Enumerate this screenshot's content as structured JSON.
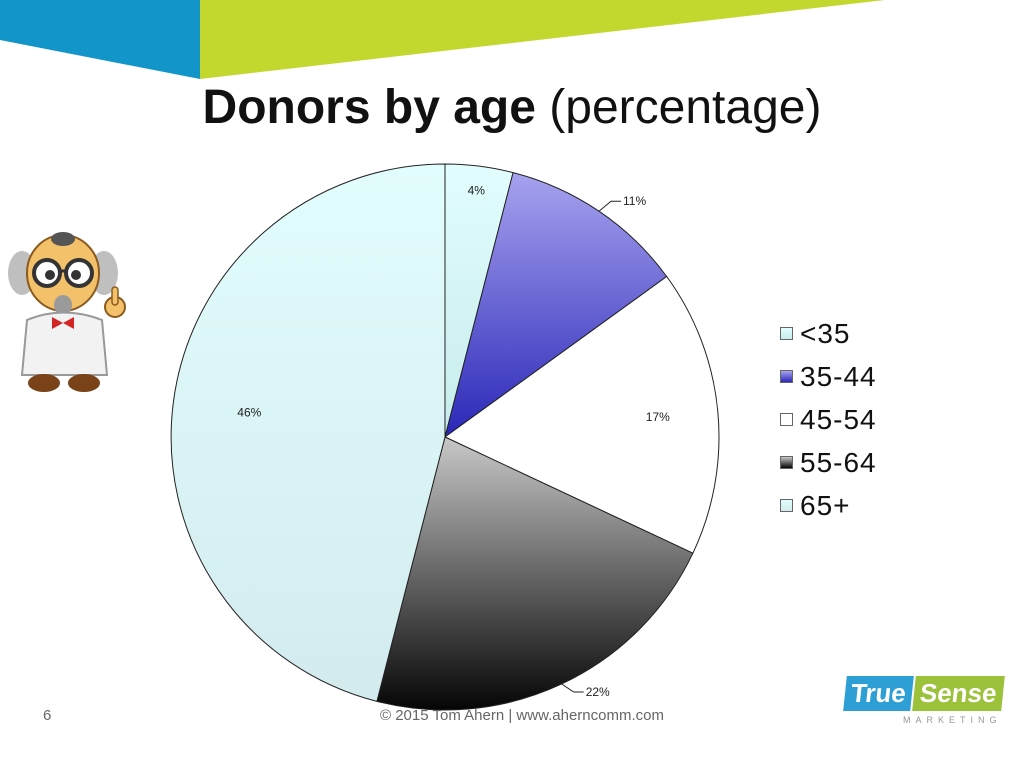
{
  "slide": {
    "title_bold": "Donors by age",
    "title_rest": "(percentage)",
    "page_number": "6",
    "footer": "© 2015 Tom Ahern | www.aherncomm.com",
    "logo": {
      "word1": "True",
      "word2": "Sense",
      "subtitle": "MARKETING",
      "word1_color": "#2e9fd4",
      "word2_color": "#9cc13a"
    },
    "banner_colors": {
      "blue": "#1296c9",
      "green": "#c3d82e"
    },
    "mascot": "professor-cartoon"
  },
  "chart_data": {
    "type": "pie",
    "title": "Donors by age (percentage)",
    "start_angle_deg": 0,
    "direction": "clockwise",
    "legend_position": "right",
    "slices": [
      {
        "label": "<35",
        "value": 4,
        "display": "4%",
        "color_top": "#e2fdfd",
        "color_bottom": "#c7ecec",
        "label_side": "inside"
      },
      {
        "label": "35-44",
        "value": 11,
        "display": "11%",
        "color_top": "#a7a3ef",
        "color_bottom": "#2a27b8",
        "label_side": "leader"
      },
      {
        "label": "45-54",
        "value": 17,
        "display": "17%",
        "color_top": "#ffffff",
        "color_bottom": "#ffffff",
        "label_side": "inside"
      },
      {
        "label": "55-64",
        "value": 22,
        "display": "22%",
        "color_top": "#c8c8c8",
        "color_bottom": "#050505",
        "label_side": "leader"
      },
      {
        "label": "65+",
        "value": 46,
        "display": "46%",
        "color_top": "#e2fdfd",
        "color_bottom": "#d3ebee",
        "label_side": "inside"
      }
    ]
  }
}
